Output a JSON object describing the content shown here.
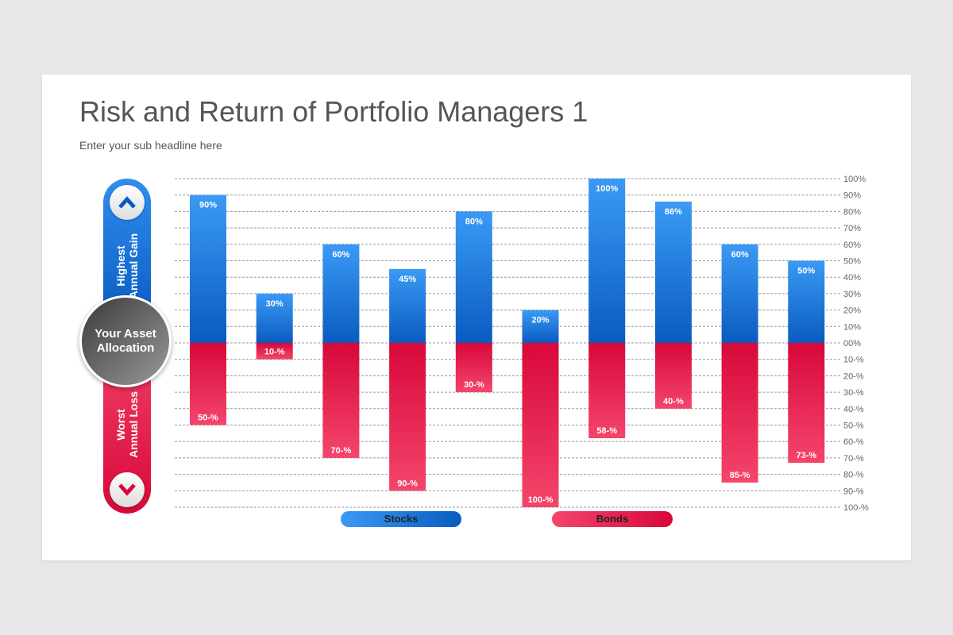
{
  "header": {
    "title": "Risk and Return of Portfolio Managers 1",
    "subtitle": "Enter your sub headline here"
  },
  "side": {
    "top_label_1": "Highest",
    "top_label_2": "Annual Gain",
    "center_label_1": "Your Asset",
    "center_label_2": "Allocation",
    "bottom_label_1": "Worst",
    "bottom_label_2": "Annual Loss",
    "up_icon": "chevron-up-icon",
    "down_icon": "chevron-down-icon"
  },
  "colors": {
    "gain": "#1e7be0",
    "loss": "#e2164a"
  },
  "chart_data": {
    "type": "bar",
    "ylim": [
      -100,
      100
    ],
    "grid": true,
    "y_ticks": [
      "100%",
      "90%",
      "80%",
      "70%",
      "60%",
      "50%",
      "40%",
      "30%",
      "20%",
      "10%",
      "00%",
      "10-%",
      "20-%",
      "30-%",
      "40-%",
      "50-%",
      "60-%",
      "70-%",
      "80-%",
      "90-%",
      "100-%"
    ],
    "series": [
      {
        "name": "Stocks",
        "values": [
          90,
          30,
          60,
          45,
          80,
          20,
          100,
          86,
          60,
          50
        ],
        "labels": [
          "90%",
          "30%",
          "60%",
          "45%",
          "80%",
          "20%",
          "100%",
          "86%",
          "60%",
          "50%"
        ]
      },
      {
        "name": "Bonds",
        "values": [
          -50,
          -10,
          -70,
          -90,
          -30,
          -100,
          -58,
          -40,
          -85,
          -73
        ],
        "labels": [
          "50-%",
          "10-%",
          "70-%",
          "90-%",
          "30-%",
          "100-%",
          "58-%",
          "40-%",
          "85-%",
          "73-%"
        ]
      }
    ],
    "legend": "bottom"
  }
}
